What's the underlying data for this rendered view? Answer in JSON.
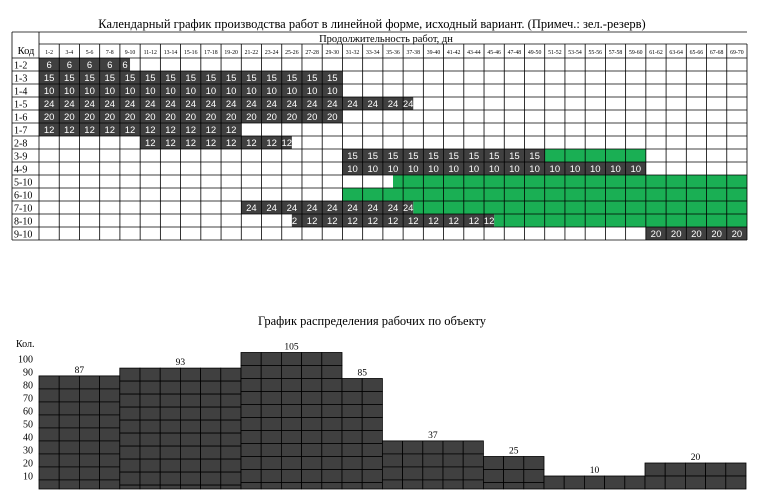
{
  "gantt": {
    "title": "Календарный график производства работ в линейной форме, исходный вариант. (Примеч.: зел.-резерв)",
    "duration_header": "Продолжительность работ, дн",
    "code_header": "Код",
    "column_labels": [
      "1-2",
      "3-4",
      "5-6",
      "7-8",
      "9-10",
      "11-12",
      "13-14",
      "15-16",
      "17-18",
      "19-20",
      "21-22",
      "23-24",
      "25-26",
      "27-28",
      "29-30",
      "31-32",
      "33-34",
      "35-36",
      "37-38",
      "39-40",
      "41-42",
      "43-44",
      "45-46",
      "47-48",
      "49-50",
      "51-52",
      "53-54",
      "55-56",
      "57-58",
      "59-60",
      "61-62",
      "63-64",
      "65-66",
      "67-68",
      "69-70"
    ],
    "colors": {
      "work": "#404040",
      "reserve": "#1aaf54",
      "grid": "#000000"
    },
    "rows": [
      {
        "code": "1-2",
        "value": "6",
        "work": [
          [
            0,
            4.5
          ]
        ],
        "reserve": []
      },
      {
        "code": "1-3",
        "value": "15",
        "work": [
          [
            0,
            15
          ]
        ],
        "reserve": []
      },
      {
        "code": "1-4",
        "value": "10",
        "work": [
          [
            0,
            15
          ]
        ],
        "reserve": []
      },
      {
        "code": "1-5",
        "value": "24",
        "work": [
          [
            0,
            18.5
          ]
        ],
        "reserve": []
      },
      {
        "code": "1-6",
        "value": "20",
        "work": [
          [
            0,
            15
          ]
        ],
        "reserve": []
      },
      {
        "code": "1-7",
        "value": "12",
        "work": [
          [
            0,
            10
          ]
        ],
        "reserve": []
      },
      {
        "code": "2-8",
        "value": "12",
        "work": [
          [
            5,
            12.5
          ]
        ],
        "reserve": []
      },
      {
        "code": "3-9",
        "value": "15",
        "work": [
          [
            15,
            25
          ]
        ],
        "reserve": [
          [
            25,
            30
          ]
        ]
      },
      {
        "code": "4-9",
        "value": "10",
        "work": [
          [
            15,
            30
          ]
        ],
        "reserve": []
      },
      {
        "code": "5-10",
        "value": "",
        "work": [],
        "reserve": [
          [
            17.5,
            35
          ]
        ]
      },
      {
        "code": "6-10",
        "value": "",
        "work": [],
        "reserve": [
          [
            15,
            35
          ]
        ]
      },
      {
        "code": "7-10",
        "value": "24",
        "work": [
          [
            10,
            18.5
          ]
        ],
        "reserve": [
          [
            18.5,
            35
          ]
        ]
      },
      {
        "code": "8-10",
        "value": "12",
        "work": [
          [
            12.5,
            22.5
          ]
        ],
        "reserve": [
          [
            22.5,
            35
          ]
        ]
      },
      {
        "code": "9-10",
        "value": "20",
        "work": [
          [
            30,
            35
          ]
        ],
        "reserve": []
      }
    ]
  },
  "histogram": {
    "title": "График распределения рабочих по объекту",
    "ylabel": "Кол.",
    "color": "#404040"
  },
  "chart_data": [
    {
      "type": "table",
      "title": "Календарный график производства работ в линейной форме, исходный вариант. (Примеч.: зел.-резерв)",
      "xlabel": "Продолжительность работ, дн",
      "note": "зел.-резерв",
      "columns": [
        "1-2",
        "3-4",
        "5-6",
        "7-8",
        "9-10",
        "11-12",
        "13-14",
        "15-16",
        "17-18",
        "19-20",
        "21-22",
        "23-24",
        "25-26",
        "27-28",
        "29-30",
        "31-32",
        "33-34",
        "35-36",
        "37-38",
        "39-40",
        "41-42",
        "43-44",
        "45-46",
        "47-48",
        "49-50",
        "51-52",
        "53-54",
        "55-56",
        "57-58",
        "59-60",
        "61-62",
        "63-64",
        "65-66",
        "67-68",
        "69-70"
      ],
      "rows": [
        "1-2",
        "1-3",
        "1-4",
        "1-5",
        "1-6",
        "1-7",
        "2-8",
        "3-9",
        "4-9",
        "5-10",
        "6-10",
        "7-10",
        "8-10",
        "9-10"
      ]
    },
    {
      "type": "bar",
      "title": "График распределения рабочих по объекту",
      "ylabel": "Кол.",
      "yticks": [
        10,
        20,
        30,
        40,
        50,
        60,
        70,
        80,
        90,
        100
      ],
      "ylim": [
        5,
        105
      ],
      "segments": [
        {
          "from": 0,
          "to": 4,
          "value": 87
        },
        {
          "from": 4,
          "to": 10,
          "value": 93
        },
        {
          "from": 10,
          "to": 15,
          "value": 105
        },
        {
          "from": 15,
          "to": 17,
          "value": 85
        },
        {
          "from": 17,
          "to": 22,
          "value": 37
        },
        {
          "from": 22,
          "to": 25,
          "value": 25
        },
        {
          "from": 25,
          "to": 30,
          "value": 10
        },
        {
          "from": 30,
          "to": 35,
          "value": 20
        }
      ]
    }
  ]
}
